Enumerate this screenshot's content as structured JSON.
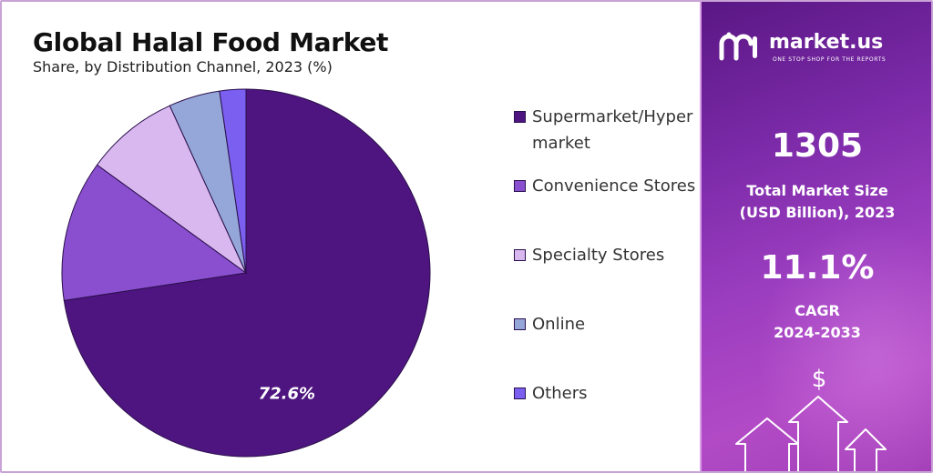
{
  "title": "Global Halal Food Market",
  "subtitle": "Share, by Distribution Channel, 2023 (%)",
  "chart_data": {
    "type": "pie",
    "title": "Global Halal Food Market",
    "subtitle": "Share, by Distribution Channel, 2023 (%)",
    "categories": [
      "Supermarket/Hypermarket",
      "Convenience Stores",
      "Specialty Stores",
      "Online",
      "Others"
    ],
    "values": [
      72.6,
      12.4,
      8.2,
      4.5,
      2.3
    ],
    "colors": [
      "#4e1580",
      "#8a4fcf",
      "#d9b8f0",
      "#94a7d8",
      "#7b5ff0"
    ],
    "data_labels": [
      "72.6%",
      "",
      "",
      "",
      ""
    ],
    "legend_position": "right",
    "legend_labels": [
      "Supermarket/Hypermarket",
      "Convenience Stores",
      "Specialty Stores",
      "Online",
      "Others"
    ]
  },
  "sidebar": {
    "brand": "market.us",
    "tagline": "ONE STOP SHOP FOR THE REPORTS",
    "market_size_value": "1305",
    "market_size_label_1": "Total Market Size",
    "market_size_label_2": "(USD Billion), 2023",
    "cagr_value": "11.1%",
    "cagr_label_1": "CAGR",
    "cagr_label_2": "2024-2033",
    "dollar_symbol": "$"
  }
}
